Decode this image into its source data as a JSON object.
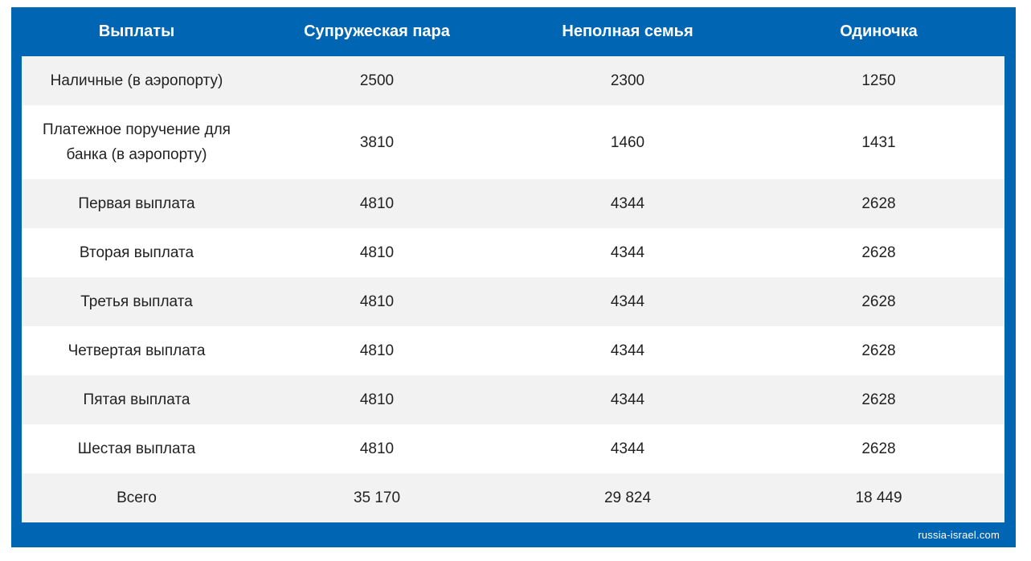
{
  "table": {
    "headers": [
      "Выплаты",
      "Супружеская пара",
      "Неполная семья",
      "Одиночка"
    ],
    "rows": [
      [
        "Наличные (в аэропорту)",
        "2500",
        "2300",
        "1250"
      ],
      [
        "Платежное поручение для банка (в аэропорту)",
        "3810",
        "1460",
        "1431"
      ],
      [
        "Первая выплата",
        "4810",
        "4344",
        "2628"
      ],
      [
        "Вторая выплата",
        "4810",
        "4344",
        "2628"
      ],
      [
        "Третья выплата",
        "4810",
        "4344",
        "2628"
      ],
      [
        "Четвертая выплата",
        "4810",
        "4344",
        "2628"
      ],
      [
        "Пятая выплата",
        "4810",
        "4344",
        "2628"
      ],
      [
        "Шестая выплата",
        "4810",
        "4344",
        "2628"
      ],
      [
        "Всего",
        "35 170",
        "29 824",
        "18 449"
      ]
    ]
  },
  "watermark": "russia-israel.com",
  "colors": {
    "frame": "#0066b3",
    "header_text": "#ffffff",
    "row_odd": "#f2f2f2",
    "row_even": "#ffffff",
    "cell_text": "#222222"
  }
}
